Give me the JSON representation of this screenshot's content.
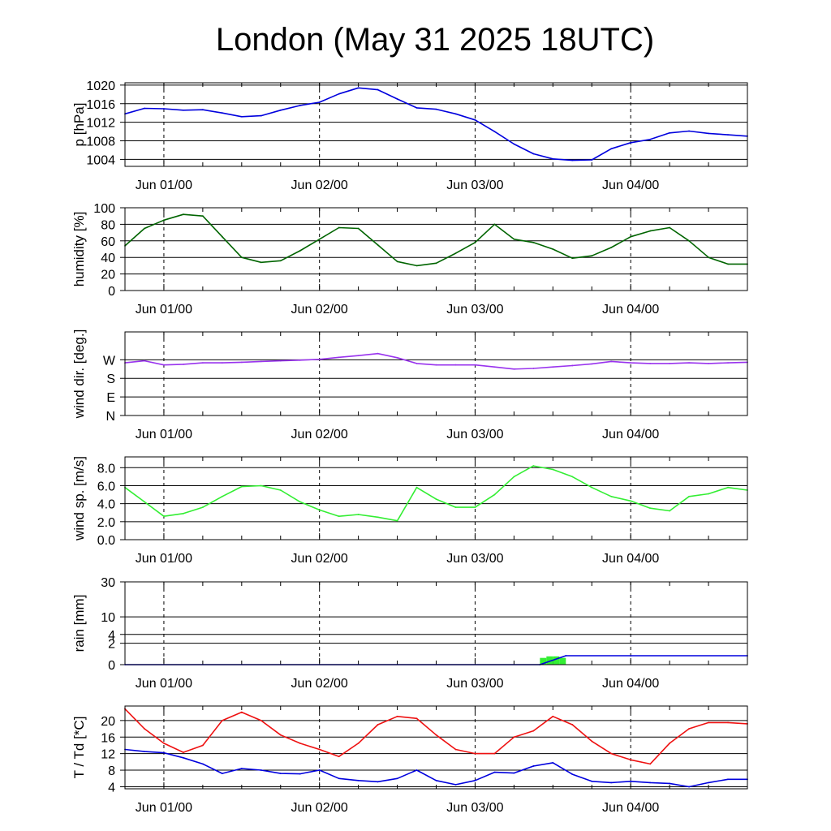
{
  "chart_data": {
    "title": "London (May 31 2025 18UTC)",
    "time_axis": {
      "start": "2025-05-31 18:00",
      "end": "2025-06-04 18:00",
      "tick_labels": [
        "Jun 01/00",
        "Jun 02/00",
        "Jun 03/00",
        "Jun 04/00"
      ],
      "dashed_day_lines": true
    },
    "panels": [
      {
        "type": "line",
        "ylabel": "p [hPa]",
        "ylim": [
          1002.5,
          1020.5
        ],
        "ytick_labels": [
          "1020",
          "1016",
          "1012",
          "1008",
          "1004"
        ],
        "ytick_values": [
          1020,
          1016,
          1012,
          1008,
          1004
        ],
        "series": [
          {
            "color": "#0000dd",
            "x": [
              "2025-05-31 18:00",
              "2025-05-31 21:00",
              "2025-06-01 00:00",
              "2025-06-01 03:00",
              "2025-06-01 06:00",
              "2025-06-01 09:00",
              "2025-06-01 12:00",
              "2025-06-01 15:00",
              "2025-06-01 18:00",
              "2025-06-01 21:00",
              "2025-06-02 00:00",
              "2025-06-02 03:00",
              "2025-06-02 06:00",
              "2025-06-02 09:00",
              "2025-06-02 12:00",
              "2025-06-02 15:00",
              "2025-06-02 18:00",
              "2025-06-02 21:00",
              "2025-06-03 00:00",
              "2025-06-03 03:00",
              "2025-06-03 06:00",
              "2025-06-03 09:00",
              "2025-06-03 12:00",
              "2025-06-03 15:00",
              "2025-06-03 18:00",
              "2025-06-03 21:00",
              "2025-06-04 00:00",
              "2025-06-04 03:00",
              "2025-06-04 06:00",
              "2025-06-04 09:00",
              "2025-06-04 12:00",
              "2025-06-04 15:00",
              "2025-06-04 18:00"
            ],
            "y": [
              1013.8,
              1015.0,
              1014.9,
              1014.6,
              1014.7,
              1014.0,
              1013.2,
              1013.4,
              1014.6,
              1015.6,
              1016.3,
              1018.1,
              1019.4,
              1019.0,
              1017.0,
              1015.1,
              1014.8,
              1013.8,
              1012.5,
              1010.0,
              1007.3,
              1005.2,
              1004.1,
              1003.8,
              1003.9,
              1006.3,
              1007.6,
              1008.3,
              1009.7,
              1010.1,
              1009.6,
              1009.3,
              1009.0
            ]
          }
        ]
      },
      {
        "type": "line",
        "ylabel": "humidity [%]",
        "ylim": [
          0,
          100
        ],
        "ytick_labels": [
          "100",
          "80",
          "60",
          "40",
          "20",
          "0"
        ],
        "ytick_values": [
          100,
          80,
          60,
          40,
          20,
          0
        ],
        "series": [
          {
            "color": "#006400",
            "x": [
              "2025-05-31 18:00",
              "2025-05-31 21:00",
              "2025-06-01 00:00",
              "2025-06-01 03:00",
              "2025-06-01 06:00",
              "2025-06-01 09:00",
              "2025-06-01 12:00",
              "2025-06-01 15:00",
              "2025-06-01 18:00",
              "2025-06-01 21:00",
              "2025-06-02 00:00",
              "2025-06-02 03:00",
              "2025-06-02 06:00",
              "2025-06-02 09:00",
              "2025-06-02 12:00",
              "2025-06-02 15:00",
              "2025-06-02 18:00",
              "2025-06-02 21:00",
              "2025-06-03 00:00",
              "2025-06-03 03:00",
              "2025-06-03 06:00",
              "2025-06-03 09:00",
              "2025-06-03 12:00",
              "2025-06-03 15:00",
              "2025-06-03 18:00",
              "2025-06-03 21:00",
              "2025-06-04 00:00",
              "2025-06-04 03:00",
              "2025-06-04 06:00",
              "2025-06-04 09:00",
              "2025-06-04 12:00",
              "2025-06-04 15:00",
              "2025-06-04 18:00"
            ],
            "y": [
              54,
              75,
              85,
              92,
              90,
              65,
              40,
              34,
              36,
              48,
              62,
              76,
              75,
              55,
              35,
              30,
              33,
              45,
              58,
              80,
              62,
              58,
              50,
              39,
              42,
              52,
              65,
              72,
              76,
              60,
              40,
              32,
              32
            ]
          }
        ]
      },
      {
        "type": "line",
        "ylabel": "wind dir. [deg.]",
        "ylim": [
          0,
          405
        ],
        "ytick_labels": [
          "W",
          "S",
          "E",
          "N"
        ],
        "ytick_values": [
          270,
          180,
          90,
          0
        ],
        "series": [
          {
            "color": "#9933ee",
            "x": [
              "2025-05-31 18:00",
              "2025-05-31 21:00",
              "2025-06-01 00:00",
              "2025-06-01 03:00",
              "2025-06-01 06:00",
              "2025-06-01 09:00",
              "2025-06-01 12:00",
              "2025-06-01 15:00",
              "2025-06-01 18:00",
              "2025-06-01 21:00",
              "2025-06-02 00:00",
              "2025-06-02 03:00",
              "2025-06-02 06:00",
              "2025-06-02 09:00",
              "2025-06-02 12:00",
              "2025-06-02 15:00",
              "2025-06-02 18:00",
              "2025-06-02 21:00",
              "2025-06-03 00:00",
              "2025-06-03 03:00",
              "2025-06-03 06:00",
              "2025-06-03 09:00",
              "2025-06-03 12:00",
              "2025-06-03 15:00",
              "2025-06-03 18:00",
              "2025-06-03 21:00",
              "2025-06-04 00:00",
              "2025-06-04 03:00",
              "2025-06-04 06:00",
              "2025-06-04 09:00",
              "2025-06-04 12:00",
              "2025-06-04 15:00",
              "2025-06-04 18:00"
            ],
            "y": [
              255,
              265,
              245,
              248,
              255,
              255,
              258,
              262,
              265,
              268,
              272,
              282,
              290,
              300,
              280,
              252,
              245,
              245,
              245,
              235,
              225,
              228,
              235,
              242,
              250,
              262,
              255,
              252,
              252,
              255,
              252,
              255,
              258
            ]
          }
        ]
      },
      {
        "type": "line",
        "ylabel": "wind sp. [m/s]",
        "ylim": [
          0,
          9.2
        ],
        "ytick_labels": [
          "8.0",
          "6.0",
          "4.0",
          "2.0",
          "0.0"
        ],
        "ytick_values": [
          8,
          6,
          4,
          2,
          0
        ],
        "series": [
          {
            "color": "#33ee33",
            "x": [
              "2025-05-31 18:00",
              "2025-05-31 21:00",
              "2025-06-01 00:00",
              "2025-06-01 03:00",
              "2025-06-01 06:00",
              "2025-06-01 09:00",
              "2025-06-01 12:00",
              "2025-06-01 15:00",
              "2025-06-01 18:00",
              "2025-06-01 21:00",
              "2025-06-02 00:00",
              "2025-06-02 03:00",
              "2025-06-02 06:00",
              "2025-06-02 09:00",
              "2025-06-02 12:00",
              "2025-06-02 15:00",
              "2025-06-02 18:00",
              "2025-06-02 21:00",
              "2025-06-03 00:00",
              "2025-06-03 03:00",
              "2025-06-03 06:00",
              "2025-06-03 09:00",
              "2025-06-03 12:00",
              "2025-06-03 15:00",
              "2025-06-03 18:00",
              "2025-06-03 21:00",
              "2025-06-04 00:00",
              "2025-06-04 03:00",
              "2025-06-04 06:00",
              "2025-06-04 09:00",
              "2025-06-04 12:00",
              "2025-06-04 15:00",
              "2025-06-04 18:00"
            ],
            "y": [
              5.8,
              4.2,
              2.6,
              2.9,
              3.6,
              4.8,
              5.9,
              6.0,
              5.5,
              4.2,
              3.3,
              2.6,
              2.8,
              2.5,
              2.1,
              5.8,
              4.5,
              3.6,
              3.6,
              5.0,
              7.0,
              8.2,
              7.8,
              7.0,
              5.8,
              4.8,
              4.3,
              3.5,
              3.2,
              4.8,
              5.1,
              5.8,
              5.5
            ]
          }
        ]
      },
      {
        "type": "area",
        "ylabel": "rain [mm]",
        "ylim": [
          0,
          30
        ],
        "ytick_labels": [
          "30",
          "10",
          "4",
          "2",
          "0"
        ],
        "ytick_values": [
          30,
          10,
          4,
          2,
          0
        ],
        "scale": "sqrt",
        "series": [
          {
            "kind": "hourly",
            "color": "#33ee33",
            "x": [
              "2025-06-03 10:30",
              "2025-06-03 11:30",
              "2025-06-03 12:30",
              "2025-06-03 13:30"
            ],
            "y": [
              0.2,
              0.3,
              0.3,
              0.2
            ]
          },
          {
            "kind": "cumulative",
            "color": "#0000dd",
            "x": [
              "2025-05-31 18:00",
              "2025-06-03 10:00",
              "2025-06-03 14:00",
              "2025-06-04 18:00"
            ],
            "y": [
              0,
              0,
              0.35,
              0.35
            ]
          }
        ]
      },
      {
        "type": "line",
        "ylabel": "T / Td [*C]",
        "ylim": [
          3.5,
          23.5
        ],
        "ytick_labels": [
          "20",
          "16",
          "12",
          "8",
          "4"
        ],
        "ytick_values": [
          20,
          16,
          12,
          8,
          4
        ],
        "series": [
          {
            "color": "#ee1111",
            "x": [
              "2025-05-31 18:00",
              "2025-05-31 21:00",
              "2025-06-01 00:00",
              "2025-06-01 03:00",
              "2025-06-01 06:00",
              "2025-06-01 09:00",
              "2025-06-01 12:00",
              "2025-06-01 15:00",
              "2025-06-01 18:00",
              "2025-06-01 21:00",
              "2025-06-02 00:00",
              "2025-06-02 03:00",
              "2025-06-02 06:00",
              "2025-06-02 09:00",
              "2025-06-02 12:00",
              "2025-06-02 15:00",
              "2025-06-02 18:00",
              "2025-06-02 21:00",
              "2025-06-03 00:00",
              "2025-06-03 03:00",
              "2025-06-03 06:00",
              "2025-06-03 09:00",
              "2025-06-03 12:00",
              "2025-06-03 15:00",
              "2025-06-03 18:00",
              "2025-06-03 21:00",
              "2025-06-04 00:00",
              "2025-06-04 03:00",
              "2025-06-04 06:00",
              "2025-06-04 09:00",
              "2025-06-04 12:00",
              "2025-06-04 15:00",
              "2025-06-04 18:00"
            ],
            "y": [
              22.8,
              18.0,
              14.5,
              12.3,
              14.0,
              20.0,
              22.0,
              20.0,
              16.5,
              14.5,
              13.0,
              11.3,
              14.5,
              19.0,
              21.0,
              20.5,
              16.5,
              13.0,
              12.0,
              12.0,
              16.0,
              17.5,
              21.0,
              19.0,
              15.0,
              12.0,
              10.5,
              9.5,
              14.5,
              18.0,
              19.5,
              19.5,
              19.2
            ]
          },
          {
            "color": "#0000dd",
            "x": [
              "2025-05-31 18:00",
              "2025-05-31 21:00",
              "2025-06-01 00:00",
              "2025-06-01 03:00",
              "2025-06-01 06:00",
              "2025-06-01 09:00",
              "2025-06-01 12:00",
              "2025-06-01 15:00",
              "2025-06-01 18:00",
              "2025-06-01 21:00",
              "2025-06-02 00:00",
              "2025-06-02 03:00",
              "2025-06-02 06:00",
              "2025-06-02 09:00",
              "2025-06-02 12:00",
              "2025-06-02 15:00",
              "2025-06-02 18:00",
              "2025-06-02 21:00",
              "2025-06-03 00:00",
              "2025-06-03 03:00",
              "2025-06-03 06:00",
              "2025-06-03 09:00",
              "2025-06-03 12:00",
              "2025-06-03 15:00",
              "2025-06-03 18:00",
              "2025-06-03 21:00",
              "2025-06-04 00:00",
              "2025-06-04 03:00",
              "2025-06-04 06:00",
              "2025-06-04 09:00",
              "2025-06-04 12:00",
              "2025-06-04 15:00",
              "2025-06-04 18:00"
            ],
            "y": [
              13.0,
              12.5,
              12.2,
              11.0,
              9.5,
              7.2,
              8.4,
              8.0,
              7.2,
              7.1,
              8.0,
              6.0,
              5.5,
              5.2,
              6.0,
              8.0,
              5.5,
              4.5,
              5.5,
              7.5,
              7.3,
              9.0,
              9.8,
              7.0,
              5.3,
              5.0,
              5.3,
              5.0,
              4.8,
              4.0,
              5.0,
              5.8,
              5.8
            ]
          }
        ]
      }
    ]
  }
}
